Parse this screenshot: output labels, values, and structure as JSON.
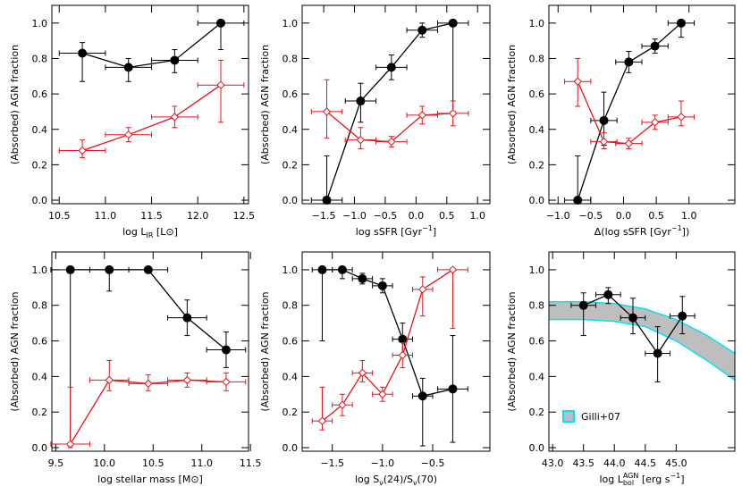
{
  "chart_data": [
    {
      "type": "errorbar",
      "ylabel": "(Absorbed) AGN fraction",
      "xlabel": [
        "log L",
        "IR",
        " [L",
        "⊙",
        "]"
      ],
      "xlim": [
        10.42,
        12.55
      ],
      "ylim": [
        -0.02,
        1.1
      ],
      "xticks": [
        10.5,
        {
          "value": 11,
          "label": "11.0"
        },
        11.5,
        {
          "value": 12,
          "label": "12.0"
        },
        12.5
      ],
      "yticks": [
        {
          "value": 0,
          "label": "0.0"
        },
        0.2,
        0.4,
        0.6,
        0.8,
        {
          "value": 1,
          "label": "1.0"
        }
      ],
      "x": [
        10.75,
        11.25,
        11.75,
        12.25
      ],
      "xerr": [
        0.25,
        0.25,
        0.25,
        0.25
      ],
      "series": [
        {
          "color": "#000000",
          "marker": "circle",
          "values": [
            0.83,
            0.75,
            0.79,
            1.0
          ],
          "yerr_minus": [
            0.16,
            0.08,
            0.07,
            0.15
          ],
          "yerr_plus": [
            0.06,
            0.05,
            0.06,
            0
          ]
        },
        {
          "color": "#e8141b",
          "marker": "diamond",
          "values": [
            0.28,
            0.37,
            0.47,
            0.65
          ],
          "yerr_minus": [
            0.04,
            0.04,
            0.06,
            0.21
          ],
          "yerr_plus": [
            0.06,
            0.04,
            0.06,
            0.14
          ]
        }
      ]
    },
    {
      "type": "errorbar",
      "ylabel": "(Absorbed) AGN fraction",
      "xlabel": [
        "log sSFR [Gyr",
        "−1",
        "]"
      ],
      "xlim": [
        -1.85,
        1.2
      ],
      "ylim": [
        -0.02,
        1.1
      ],
      "xticks": [
        {
          "value": -1.5,
          "label": "−1.5"
        },
        {
          "value": -1,
          "label": "−1.0"
        },
        {
          "value": -0.5,
          "label": "−0.5"
        },
        {
          "value": 0,
          "label": "0.0"
        },
        0.5,
        {
          "value": 1,
          "label": "1.0"
        }
      ],
      "yticks": [
        {
          "value": 0,
          "label": "0.0"
        },
        0.2,
        0.4,
        0.6,
        0.8,
        {
          "value": 1,
          "label": "1.0"
        }
      ],
      "x": [
        -1.45,
        -0.9,
        -0.4,
        0.1,
        0.6
      ],
      "xerr": [
        0.25,
        0.25,
        0.25,
        0.25,
        0.25
      ],
      "series": [
        {
          "color": "#000000",
          "marker": "circle",
          "values": [
            0.0,
            0.56,
            0.75,
            0.96,
            1.0
          ],
          "yerr_minus": [
            0,
            0.12,
            0.07,
            0.04,
            0.5
          ],
          "yerr_plus": [
            0.25,
            0.1,
            0.07,
            0.04,
            0
          ]
        },
        {
          "color": "#e8141b",
          "marker": "diamond",
          "values": [
            0.5,
            0.34,
            0.33,
            0.48,
            0.49
          ],
          "yerr_minus": [
            0.15,
            0.05,
            0.03,
            0.05,
            0.07
          ],
          "yerr_plus": [
            0.18,
            0.07,
            0.03,
            0.05,
            0.07
          ]
        }
      ]
    },
    {
      "type": "errorbar",
      "ylabel": "(Absorbed) AGN fraction",
      "xlabel": [
        "Δ(log sSFR [Gyr",
        "−1",
        "])"
      ],
      "xlim": [
        -1.14,
        1.7
      ],
      "ylim": [
        -0.02,
        1.1
      ],
      "xticks": [
        {
          "value": -1,
          "label": "−1.0"
        },
        {
          "value": -0.5,
          "label": "−0.5"
        },
        {
          "value": 0,
          "label": "0.0"
        },
        0.5,
        {
          "value": 1,
          "label": "1.0"
        }
      ],
      "yticks": [
        {
          "value": 0,
          "label": "0.0"
        },
        0.2,
        0.4,
        0.6,
        0.8,
        {
          "value": 1,
          "label": "1.0"
        }
      ],
      "x": [
        -0.7,
        -0.3,
        0.08,
        0.48,
        0.88
      ],
      "xerr": [
        0.2,
        0.2,
        0.2,
        0.2,
        0.2
      ],
      "series": [
        {
          "color": "#000000",
          "marker": "circle",
          "values": [
            0.0,
            0.45,
            0.78,
            0.87,
            1.0
          ],
          "yerr_minus": [
            0,
            0.14,
            0.06,
            0.04,
            0.08
          ],
          "yerr_plus": [
            0.25,
            0.16,
            0.06,
            0.04,
            0
          ]
        },
        {
          "color": "#e8141b",
          "marker": "diamond",
          "values": [
            0.67,
            0.33,
            0.32,
            0.44,
            0.47
          ],
          "yerr_minus": [
            0.14,
            0.04,
            0.03,
            0.04,
            0.05
          ],
          "yerr_plus": [
            0.13,
            0.05,
            0.03,
            0.04,
            0.09
          ]
        }
      ]
    },
    {
      "type": "errorbar",
      "ylabel": "(Absorbed) AGN fraction",
      "xlabel": [
        "log stellar mass [M⊙]"
      ],
      "xlim": [
        9.46,
        11.48
      ],
      "ylim": [
        -0.02,
        1.1
      ],
      "xticks": [
        9.5,
        {
          "value": 10,
          "label": "10.0"
        },
        10.5,
        {
          "value": 11,
          "label": "11.0"
        },
        11.5
      ],
      "yticks": [
        {
          "value": 0,
          "label": "0.0"
        },
        0.2,
        0.4,
        0.6,
        0.8,
        {
          "value": 1,
          "label": "1.0"
        }
      ],
      "x": [
        9.65,
        10.05,
        10.45,
        10.85,
        11.25
      ],
      "xerr": [
        0.2,
        0.2,
        0.2,
        0.2,
        0.2
      ],
      "series": [
        {
          "color": "#000000",
          "marker": "circle",
          "values": [
            1.0,
            1.0,
            1.0,
            0.73,
            0.55
          ],
          "yerr_minus": [
            0.99,
            0.12,
            0,
            0.1,
            0.1
          ],
          "yerr_plus": [
            0,
            0,
            0,
            0.1,
            0.1
          ]
        },
        {
          "color": "#e8141b",
          "marker": "diamond",
          "values": [
            0.02,
            0.38,
            0.36,
            0.38,
            0.37
          ],
          "yerr_minus": [
            0.02,
            0.06,
            0.04,
            0.04,
            0.05
          ],
          "yerr_plus": [
            0.32,
            0.11,
            0.05,
            0.04,
            0.05
          ]
        }
      ]
    },
    {
      "type": "errorbar",
      "ylabel": "(Absorbed) AGN fraction",
      "xlabel": [
        "log S",
        "ν",
        "(24)/S",
        "ν",
        "(70)"
      ],
      "xlim": [
        -1.8,
        0.07
      ],
      "ylim": [
        -0.02,
        1.1
      ],
      "xticks": [
        {
          "value": -1.5,
          "label": "−1.5"
        },
        {
          "value": -1,
          "label": "−1.0"
        },
        {
          "value": -0.5,
          "label": "−0.5"
        }
      ],
      "yticks": [
        {
          "value": 0,
          "label": "0.0"
        },
        0.2,
        0.4,
        0.6,
        0.8,
        {
          "value": 1,
          "label": "1.0"
        }
      ],
      "x": [
        -1.6,
        -1.4,
        -1.2,
        -1.0,
        -0.8,
        -0.6,
        -0.3
      ],
      "xerr": [
        0.1,
        0.1,
        0.1,
        0.1,
        0.1,
        0.1,
        0.15
      ],
      "series": [
        {
          "color": "#000000",
          "marker": "circle",
          "values": [
            1.0,
            1.0,
            0.95,
            0.91,
            0.61,
            0.29,
            0.33
          ],
          "yerr_minus": [
            0.4,
            0.05,
            0.03,
            0.04,
            0.09,
            0.28,
            0.3
          ],
          "yerr_plus": [
            0,
            0,
            0.03,
            0.04,
            0.09,
            0.1,
            0.3
          ]
        },
        {
          "color": "#e8141b",
          "marker": "diamond",
          "values": [
            0.15,
            0.24,
            0.42,
            0.3,
            0.52,
            0.89,
            1.0
          ],
          "yerr_minus": [
            0.05,
            0.06,
            0.05,
            0.04,
            0.07,
            0.15,
            0.33
          ],
          "yerr_plus": [
            0.19,
            0.06,
            0.07,
            0.04,
            0.07,
            0.07,
            0
          ]
        }
      ]
    },
    {
      "type": "errorbar",
      "ylabel": "(Absorbed) AGN fraction",
      "xlabel": [
        "log L",
        "bol",
        "AGN",
        " [erg s",
        "−1",
        "]"
      ],
      "xlim": [
        42.94,
        45.95
      ],
      "ylim": [
        -0.02,
        1.1
      ],
      "xticks": [
        {
          "value": 43,
          "label": "43.0"
        },
        43.5,
        {
          "value": 44,
          "label": "44.0"
        },
        44.5,
        {
          "value": 45,
          "label": "45.0"
        }
      ],
      "yticks": [
        {
          "value": 0,
          "label": "0.0"
        },
        0.2,
        0.4,
        0.6,
        0.8,
        {
          "value": 1,
          "label": "1.0"
        }
      ],
      "x": [
        43.5,
        43.9,
        44.3,
        44.7,
        45.1
      ],
      "xerr": [
        0.2,
        0.2,
        0.2,
        0.2,
        0.2
      ],
      "band": {
        "name": "Gilli+07",
        "color": "#bebebe",
        "edge": "#00e5ee",
        "x": [
          42.94,
          43.5,
          44.0,
          44.5,
          45.0,
          45.5,
          45.95
        ],
        "upper": [
          0.82,
          0.82,
          0.81,
          0.78,
          0.72,
          0.63,
          0.53
        ],
        "lower": [
          0.72,
          0.72,
          0.71,
          0.68,
          0.6,
          0.49,
          0.38
        ]
      },
      "series": [
        {
          "color": "#000000",
          "marker": "circle",
          "values": [
            0.8,
            0.86,
            0.73,
            0.53,
            0.74
          ],
          "yerr_minus": [
            0.17,
            0.05,
            0.09,
            0.16,
            0.1
          ],
          "yerr_plus": [
            0.07,
            0.04,
            0.11,
            0.15,
            0.11
          ]
        }
      ]
    }
  ]
}
